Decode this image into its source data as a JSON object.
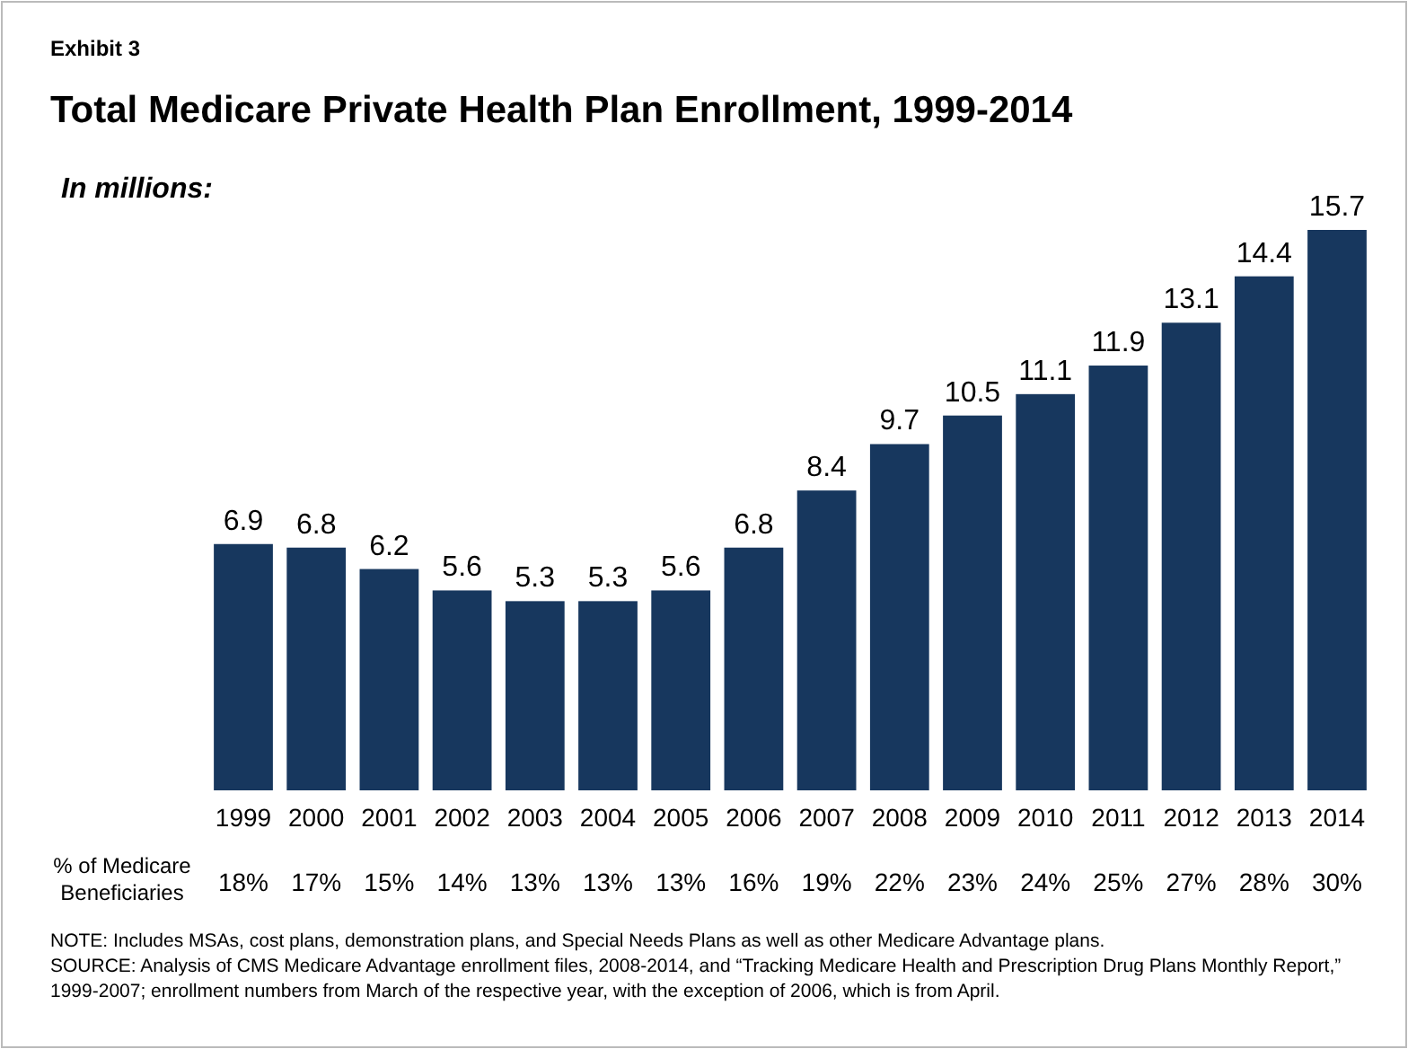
{
  "chart_data": {
    "type": "bar",
    "title": "Total Medicare Private Health Plan Enrollment, 1999-2014",
    "subtitle": "In millions:",
    "categories": [
      "1999",
      "2000",
      "2001",
      "2002",
      "2003",
      "2004",
      "2005",
      "2006",
      "2007",
      "2008",
      "2009",
      "2010",
      "2011",
      "2012",
      "2013",
      "2014"
    ],
    "values": [
      6.9,
      6.8,
      6.2,
      5.6,
      5.3,
      5.3,
      5.6,
      6.8,
      8.4,
      9.7,
      10.5,
      11.1,
      11.9,
      13.1,
      14.4,
      15.7
    ],
    "color": "#17375e",
    "data_labels": true,
    "annotations": [
      "Exhibit 3",
      "% of Medicare Beneficiaries",
      "NOTE:  Includes MSAs, cost plans, demonstration plans, and Special Needs Plans as well as other Medicare Advantage plans.",
      "SOURCE:  Analysis of CMS Medicare Advantage enrollment files, 2008-2014, and “Tracking Medicare Health and Prescription Drug Plans Monthly Report,” 1999-2007; enrollment numbers from March of the respective year, with the exception of 2006, which is from April.",
      "18%",
      "17%",
      "15%",
      "14%",
      "13%",
      "13%",
      "13%",
      "16%",
      "19%",
      "22%",
      "23%",
      "24%",
      "25%",
      "27%",
      "28%",
      "30%"
    ]
  }
}
